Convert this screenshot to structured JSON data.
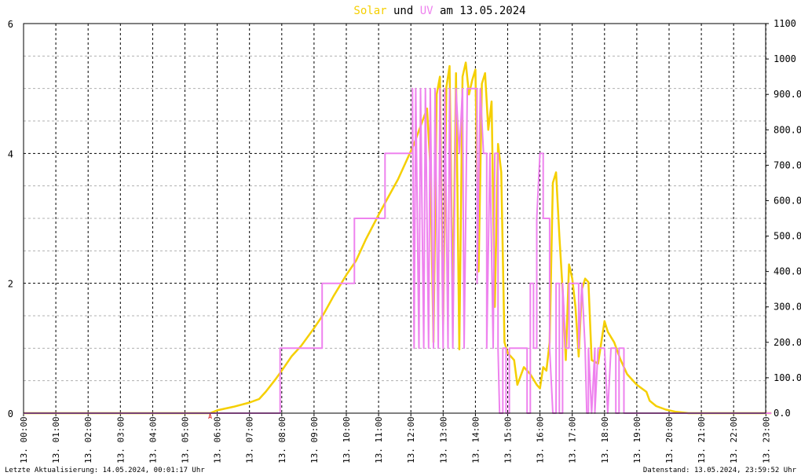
{
  "chart_data": {
    "type": "line",
    "title": {
      "part1": "Solar",
      "part2": " und ",
      "part3": "UV",
      "part4": " am 13.05.2024"
    },
    "left_axis": {
      "min": 0,
      "max": 6,
      "ticks": [
        "0",
        "2",
        "4",
        "6"
      ]
    },
    "right_axis": {
      "min": 0,
      "max": 1100,
      "ticks": [
        "0.0",
        "100.0",
        "200.0",
        "300.0",
        "400.0",
        "500.0",
        "600.0",
        "700.0",
        "800.0",
        "900.0",
        "1000",
        "1100"
      ]
    },
    "x_labels": [
      "13. 00:00",
      "13. 01:00",
      "13. 02:00",
      "13. 03:00",
      "13. 04:00",
      "13. 05:00",
      "13. 06:00",
      "13. 07:00",
      "13. 08:00",
      "13. 09:00",
      "13. 10:00",
      "13. 11:00",
      "13. 12:00",
      "13. 13:00",
      "13. 14:00",
      "13. 15:00",
      "13. 16:00",
      "13. 17:00",
      "13. 18:00",
      "13. 19:00",
      "13. 20:00",
      "13. 21:00",
      "13. 22:00",
      "13. 23:00"
    ],
    "x_range_hours": [
      0,
      23.17
    ],
    "grid": true,
    "marker_a": {
      "label": "A",
      "hour": 5.78
    },
    "colors": {
      "solar": "#f5cf00",
      "uv": "#ee82ee",
      "marker": "#cc0000",
      "grid": "#000000",
      "minor_grid": "#b0b0b0"
    },
    "series": [
      {
        "name": "Solar",
        "axis": "right",
        "points": [
          [
            0,
            0
          ],
          [
            5.78,
            0
          ],
          [
            6.0,
            8
          ],
          [
            6.5,
            18
          ],
          [
            7.0,
            30
          ],
          [
            7.3,
            40
          ],
          [
            7.5,
            60
          ],
          [
            7.8,
            95
          ],
          [
            8.0,
            120
          ],
          [
            8.3,
            160
          ],
          [
            8.6,
            190
          ],
          [
            9.0,
            240
          ],
          [
            9.3,
            280
          ],
          [
            9.6,
            330
          ],
          [
            10.0,
            390
          ],
          [
            10.3,
            430
          ],
          [
            10.6,
            490
          ],
          [
            11.0,
            560
          ],
          [
            11.3,
            610
          ],
          [
            11.6,
            660
          ],
          [
            11.9,
            720
          ],
          [
            12.1,
            760
          ],
          [
            12.3,
            810
          ],
          [
            12.5,
            860
          ],
          [
            12.6,
            700
          ],
          [
            12.7,
            200
          ],
          [
            12.8,
            900
          ],
          [
            12.9,
            950
          ],
          [
            13.0,
            250
          ],
          [
            13.1,
            920
          ],
          [
            13.2,
            980
          ],
          [
            13.3,
            300
          ],
          [
            13.4,
            960
          ],
          [
            13.5,
            180
          ],
          [
            13.6,
            950
          ],
          [
            13.7,
            990
          ],
          [
            13.8,
            900
          ],
          [
            13.9,
            940
          ],
          [
            14.0,
            970
          ],
          [
            14.1,
            400
          ],
          [
            14.2,
            930
          ],
          [
            14.3,
            960
          ],
          [
            14.4,
            800
          ],
          [
            14.5,
            880
          ],
          [
            14.6,
            300
          ],
          [
            14.7,
            760
          ],
          [
            14.8,
            680
          ],
          [
            14.9,
            200
          ],
          [
            15.0,
            170
          ],
          [
            15.2,
            150
          ],
          [
            15.3,
            80
          ],
          [
            15.5,
            130
          ],
          [
            15.7,
            110
          ],
          [
            15.9,
            80
          ],
          [
            16.0,
            70
          ],
          [
            16.1,
            130
          ],
          [
            16.2,
            120
          ],
          [
            16.3,
            200
          ],
          [
            16.4,
            650
          ],
          [
            16.5,
            680
          ],
          [
            16.6,
            500
          ],
          [
            16.7,
            350
          ],
          [
            16.8,
            150
          ],
          [
            16.9,
            420
          ],
          [
            17.0,
            380
          ],
          [
            17.1,
            300
          ],
          [
            17.2,
            160
          ],
          [
            17.3,
            350
          ],
          [
            17.4,
            380
          ],
          [
            17.5,
            370
          ],
          [
            17.6,
            150
          ],
          [
            17.8,
            140
          ],
          [
            17.9,
            200
          ],
          [
            18.0,
            260
          ],
          [
            18.1,
            230
          ],
          [
            18.3,
            200
          ],
          [
            18.5,
            150
          ],
          [
            18.7,
            110
          ],
          [
            18.9,
            90
          ],
          [
            19.0,
            80
          ],
          [
            19.3,
            60
          ],
          [
            19.4,
            35
          ],
          [
            19.6,
            20
          ],
          [
            19.9,
            10
          ],
          [
            20.2,
            4
          ],
          [
            20.5,
            1
          ],
          [
            20.6,
            0
          ],
          [
            23.17,
            0
          ]
        ]
      },
      {
        "name": "UV",
        "axis": "left",
        "points": [
          [
            0,
            0
          ],
          [
            7.95,
            0
          ],
          [
            7.95,
            1
          ],
          [
            9.25,
            1
          ],
          [
            9.25,
            2
          ],
          [
            10.25,
            2
          ],
          [
            10.25,
            3
          ],
          [
            11.2,
            3
          ],
          [
            11.2,
            4
          ],
          [
            12.05,
            4
          ],
          [
            12.05,
            5
          ],
          [
            12.1,
            1
          ],
          [
            12.15,
            5
          ],
          [
            12.25,
            1
          ],
          [
            12.3,
            5
          ],
          [
            12.4,
            1
          ],
          [
            12.45,
            5
          ],
          [
            12.55,
            1
          ],
          [
            12.6,
            5
          ],
          [
            12.7,
            1
          ],
          [
            12.75,
            5
          ],
          [
            12.85,
            1
          ],
          [
            12.9,
            5
          ],
          [
            13.0,
            1
          ],
          [
            13.05,
            5
          ],
          [
            13.15,
            1
          ],
          [
            13.2,
            5
          ],
          [
            13.3,
            1
          ],
          [
            13.4,
            5
          ],
          [
            13.5,
            4
          ],
          [
            13.6,
            5
          ],
          [
            13.65,
            1
          ],
          [
            13.75,
            5
          ],
          [
            14.05,
            5
          ],
          [
            14.05,
            2
          ],
          [
            14.15,
            5
          ],
          [
            14.25,
            4
          ],
          [
            14.35,
            4
          ],
          [
            14.35,
            1
          ],
          [
            14.45,
            4
          ],
          [
            14.55,
            1
          ],
          [
            14.6,
            4
          ],
          [
            14.7,
            4
          ],
          [
            14.7,
            1
          ],
          [
            14.75,
            0
          ],
          [
            14.85,
            0
          ],
          [
            14.85,
            1
          ],
          [
            14.95,
            1
          ],
          [
            14.95,
            0
          ],
          [
            15.05,
            0
          ],
          [
            15.05,
            1
          ],
          [
            15.6,
            1
          ],
          [
            15.6,
            0
          ],
          [
            15.7,
            0
          ],
          [
            15.7,
            2
          ],
          [
            15.8,
            2
          ],
          [
            15.8,
            1
          ],
          [
            15.9,
            1
          ],
          [
            15.9,
            3
          ],
          [
            16.0,
            4
          ],
          [
            16.1,
            4
          ],
          [
            16.1,
            3
          ],
          [
            16.3,
            3
          ],
          [
            16.3,
            1
          ],
          [
            16.4,
            0
          ],
          [
            16.5,
            0
          ],
          [
            16.5,
            2
          ],
          [
            16.6,
            2
          ],
          [
            16.6,
            0
          ],
          [
            16.7,
            0
          ],
          [
            16.7,
            2
          ],
          [
            16.8,
            1
          ],
          [
            16.9,
            1
          ],
          [
            16.9,
            2
          ],
          [
            17.2,
            2
          ],
          [
            17.2,
            1
          ],
          [
            17.3,
            2
          ],
          [
            17.4,
            1
          ],
          [
            17.45,
            0
          ],
          [
            17.5,
            0
          ],
          [
            17.5,
            1
          ],
          [
            17.6,
            0
          ],
          [
            17.7,
            1
          ],
          [
            17.7,
            0
          ],
          [
            17.8,
            1
          ],
          [
            18.0,
            1
          ],
          [
            18.0,
            1
          ],
          [
            18.1,
            0
          ],
          [
            18.2,
            1
          ],
          [
            18.35,
            1
          ],
          [
            18.35,
            0
          ],
          [
            18.45,
            0
          ],
          [
            18.45,
            1
          ],
          [
            18.6,
            1
          ],
          [
            18.6,
            0
          ],
          [
            19.2,
            0
          ],
          [
            23.17,
            0
          ]
        ]
      }
    ]
  },
  "footer": {
    "left": "Letzte Aktualisierung: 14.05.2024, 00:01:17 Uhr",
    "right": "Datenstand: 13.05.2024, 23:59:52 Uhr"
  }
}
